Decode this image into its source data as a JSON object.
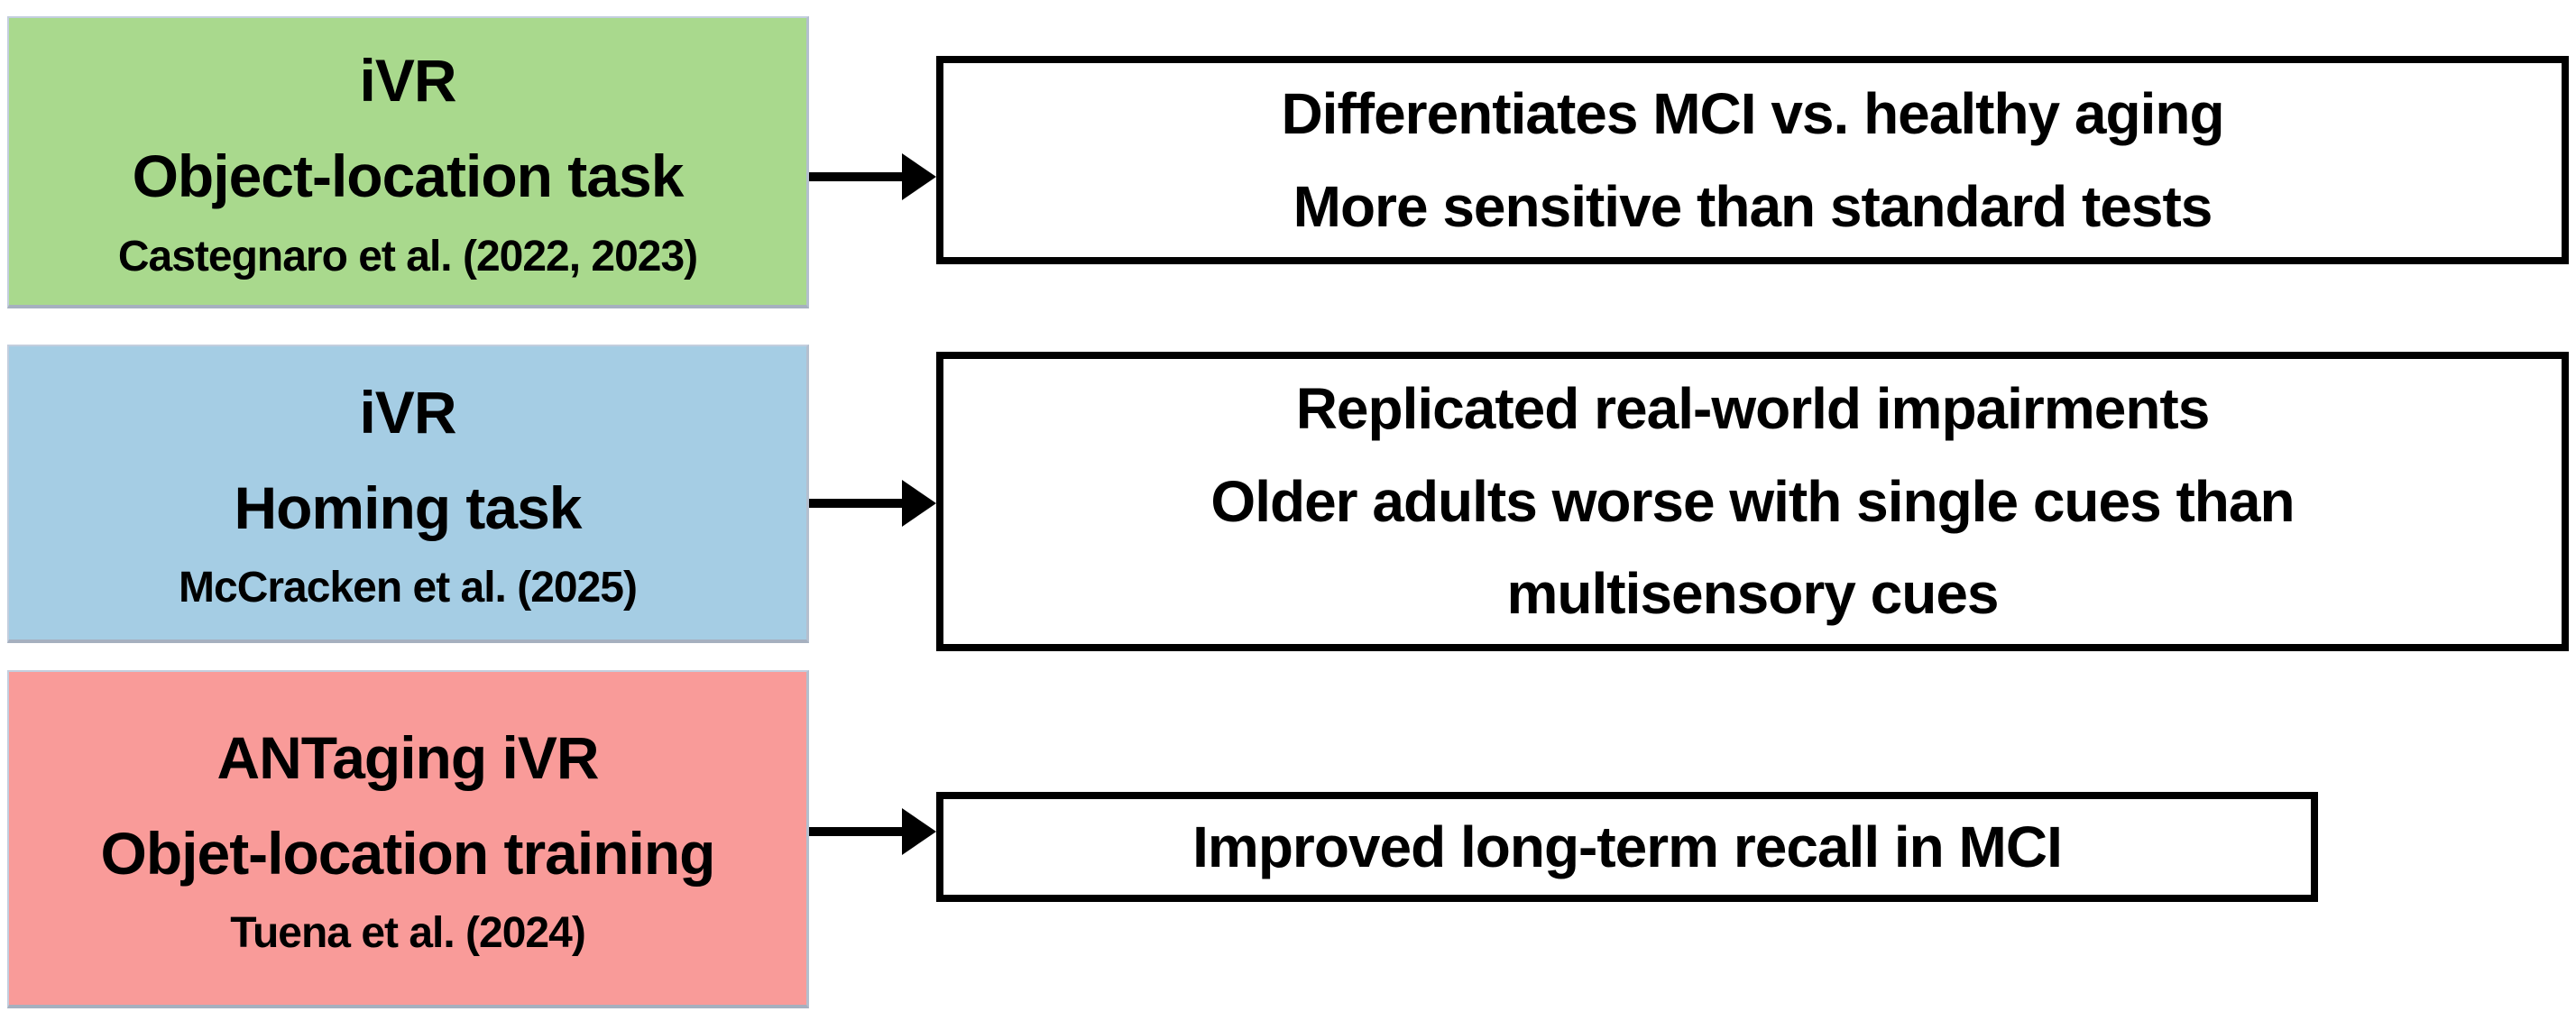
{
  "diagram": {
    "description": "iVR spatial-memory studies linked to their key findings",
    "background_color": "#ffffff",
    "arrow_color": "#000000",
    "finding_box_border_color": "#000000",
    "rows": [
      {
        "source": {
          "title": "iVR\nObject-location task",
          "citation": "Castegnaro et al. (2022, 2023)",
          "fill": "#a9d98d"
        },
        "finding": {
          "text": "Differentiates MCI vs. healthy aging\nMore sensitive than standard tests"
        }
      },
      {
        "source": {
          "title": "iVR\nHoming task",
          "citation": "McCracken et al. (2025)",
          "fill": "#a5cde4"
        },
        "finding": {
          "text": "Replicated real-world impairments\nOlder adults worse with single cues than\nmultisensory cues"
        }
      },
      {
        "source": {
          "title": "ANTaging iVR\nObjet-location training",
          "citation": "Tuena et al. (2024)",
          "fill": "#f99b99"
        },
        "finding": {
          "text": "Improved long-term recall in MCI"
        }
      }
    ]
  }
}
